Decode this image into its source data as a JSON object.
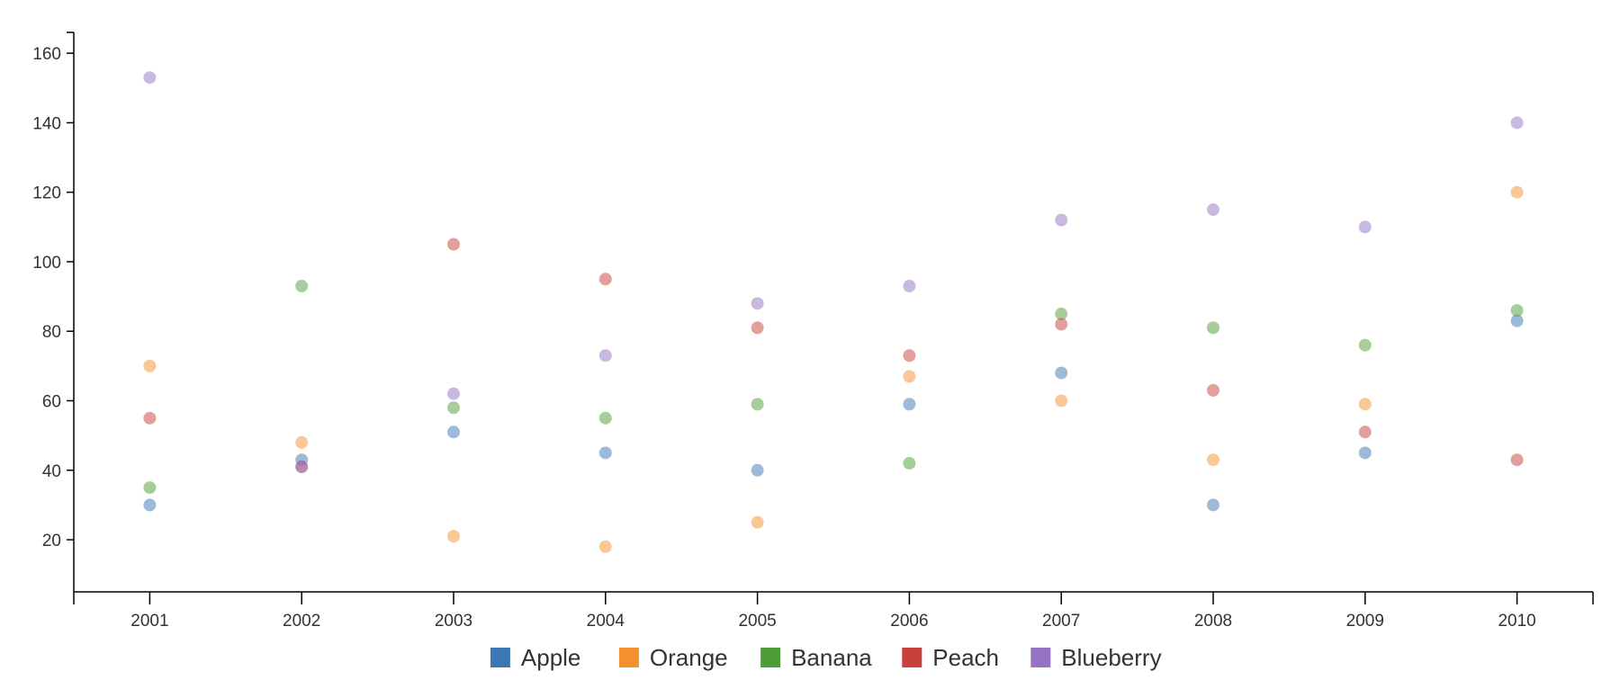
{
  "chart_data": {
    "type": "scatter",
    "title": "",
    "xlabel": "",
    "ylabel": "",
    "x": [
      2001,
      2002,
      2003,
      2004,
      2005,
      2006,
      2007,
      2008,
      2009,
      2010
    ],
    "x_tick_labels": [
      "2001",
      "2002",
      "2003",
      "2004",
      "2005",
      "2006",
      "2007",
      "2008",
      "2009",
      "2010"
    ],
    "xlim": [
      2000.5,
      2010.5
    ],
    "ylim": [
      5,
      166
    ],
    "y_ticks": [
      20,
      40,
      60,
      80,
      100,
      120,
      140,
      160
    ],
    "y_tick_labels": [
      "20",
      "40",
      "60",
      "80",
      "100",
      "120",
      "140",
      "160"
    ],
    "grid": false,
    "legend_position": "bottom-center",
    "series": [
      {
        "name": "Apple",
        "color": "#3b77b3",
        "values": [
          30,
          43,
          51,
          45,
          40,
          59,
          68,
          30,
          45,
          83
        ]
      },
      {
        "name": "Orange",
        "color": "#f58f2f",
        "values": [
          70,
          48,
          21,
          18,
          25,
          67,
          60,
          43,
          59,
          120
        ]
      },
      {
        "name": "Banana",
        "color": "#4d9e38",
        "values": [
          35,
          93,
          58,
          55,
          59,
          42,
          85,
          81,
          76,
          86
        ]
      },
      {
        "name": "Peach",
        "color": "#c8403a",
        "values": [
          55,
          41,
          105,
          95,
          81,
          73,
          82,
          63,
          51,
          43
        ]
      },
      {
        "name": "Blueberry",
        "color": "#9474c2",
        "values": [
          153,
          41,
          62,
          73,
          88,
          93,
          112,
          115,
          110,
          140
        ]
      }
    ]
  }
}
